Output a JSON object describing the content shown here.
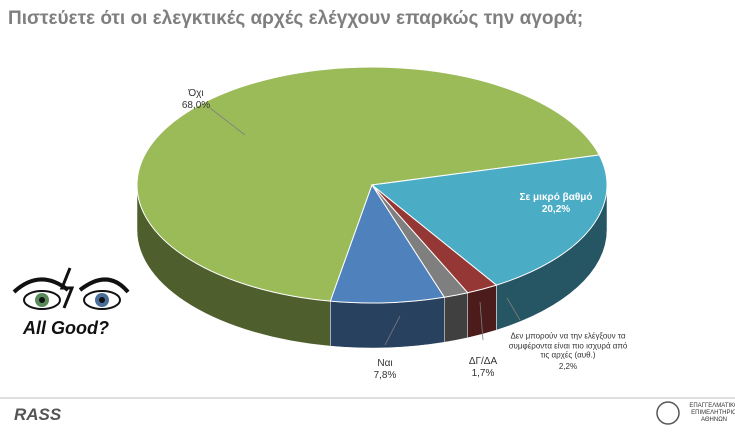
{
  "chart_data": {
    "type": "pie3d",
    "title": "Πιστεύετε ότι οι ελεγκτικές αρχές ελέγχουν επαρκώς την αγορά;",
    "categories": [
      "Όχι",
      "Σε μικρό βαθμό",
      "Δεν μπορούν να την ελέγξουν τα συμφέροντα είναι πιο ισχυρά από τις αρχές (αυθ.)",
      "ΔΓ/ΔΑ",
      "Ναι"
    ],
    "values": [
      68.0,
      20.2,
      2.2,
      1.7,
      7.8
    ],
    "value_labels": [
      "68,0%",
      "20,2%",
      "2,2%",
      "1,7%",
      "7,8%"
    ],
    "colors": [
      "#9bbb59",
      "#4bacc6",
      "#953735",
      "#7f7f7f",
      "#4f81bd"
    ]
  },
  "branding": {
    "badge": "All Good?",
    "left_logo": "RASS",
    "right_logo": "ΕΠΑΓΓΕΛΜΑΤΙΚΟ ΕΠΙΜΕΛΗΤΗΡΙΟ ΑΘΗΝΩΝ"
  }
}
